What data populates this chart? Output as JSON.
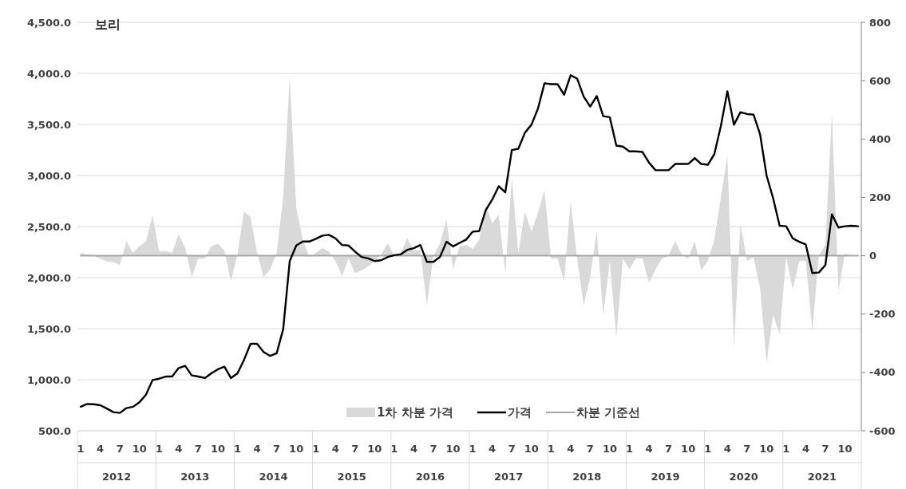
{
  "chart_data": {
    "type": "line",
    "title": "보리",
    "categories": [
      "1",
      null,
      null,
      "4",
      null,
      null,
      "7",
      null,
      null,
      "10",
      null,
      null,
      "1",
      null,
      null,
      "4",
      null,
      null,
      "7",
      null,
      null,
      "10",
      null,
      null,
      "1",
      null,
      null,
      "4",
      null,
      null,
      "7",
      null,
      null,
      "10",
      null,
      null,
      "1",
      null,
      null,
      "4",
      null,
      null,
      "7",
      null,
      null,
      "10",
      null,
      null,
      "1",
      null,
      null,
      "4",
      null,
      null,
      "7",
      null,
      null,
      "10",
      null,
      null,
      "1",
      null,
      null,
      "4",
      null,
      null,
      "7",
      null,
      null,
      "10",
      null,
      null,
      "1",
      null,
      null,
      "4",
      null,
      null,
      "7",
      null,
      null,
      "10",
      null,
      null,
      "1",
      null,
      null,
      "4",
      null,
      null,
      "7",
      null,
      null,
      "10",
      null,
      null,
      "1",
      null,
      null,
      "4",
      null,
      null,
      "7",
      null,
      null,
      "10",
      null,
      null,
      "1",
      null,
      null,
      "4",
      null,
      null,
      "7",
      null,
      null,
      "10",
      null,
      null
    ],
    "annotations": [
      "2012",
      "2013",
      "2014",
      "2015",
      "2016",
      "2017",
      "2018",
      "2019",
      "2020",
      "2021"
    ],
    "series": [
      {
        "name": "1차 차분 가격",
        "type": "area",
        "axis": "y2",
        "color": "#d9d9d9",
        "values": [
          10,
          5,
          0,
          -10,
          -20,
          -22,
          -32,
          50,
          10,
          32,
          50,
          138,
          16,
          16,
          10,
          73,
          27,
          -73,
          -10,
          -10,
          32,
          41,
          18,
          -87,
          5,
          151,
          133,
          10,
          -73,
          -46,
          10,
          200,
          614,
          165,
          55,
          -5,
          10,
          27,
          14,
          -18,
          -69,
          -10,
          -60,
          -50,
          -37,
          -18,
          5,
          41,
          0,
          10,
          60,
          18,
          18,
          -170,
          0,
          41,
          124,
          -46,
          32,
          37,
          23,
          55,
          174,
          110,
          142,
          -60,
          266,
          10,
          151,
          83,
          147,
          225,
          -10,
          -10,
          -87,
          188,
          -10,
          -170,
          -73,
          83,
          -202,
          -18,
          -280,
          -10,
          -46,
          -10,
          -10,
          -92,
          -46,
          -10,
          0,
          50,
          5,
          -10,
          50,
          -50,
          -18,
          55,
          200,
          340,
          -320,
          110,
          -18,
          -5,
          -110,
          -367,
          -202,
          -270,
          -5,
          -115,
          -18,
          -18,
          -257,
          0,
          37,
          490,
          -120,
          7,
          0,
          0
        ]
      },
      {
        "name": "가격",
        "color": "#000000",
        "values": [
          736,
          762,
          760,
          750,
          718,
          683,
          675,
          722,
          735,
          780,
          853,
          997,
          1010,
          1031,
          1031,
          1115,
          1136,
          1042,
          1031,
          1016,
          1063,
          1102,
          1128,
          1016,
          1063,
          1194,
          1351,
          1351,
          1272,
          1233,
          1259,
          1495,
          2162,
          2314,
          2353,
          2353,
          2380,
          2411,
          2419,
          2385,
          2319,
          2314,
          2254,
          2202,
          2189,
          2162,
          2170,
          2202,
          2220,
          2228,
          2272,
          2288,
          2319,
          2154,
          2154,
          2202,
          2351,
          2306,
          2340,
          2372,
          2450,
          2455,
          2660,
          2764,
          2895,
          2835,
          3249,
          3262,
          3419,
          3497,
          3654,
          3903,
          3895,
          3895,
          3791,
          3982,
          3948,
          3772,
          3675,
          3778,
          3581,
          3571,
          3293,
          3283,
          3236,
          3236,
          3230,
          3126,
          3052,
          3052,
          3052,
          3113,
          3113,
          3113,
          3170,
          3113,
          3105,
          3209,
          3484,
          3825,
          3497,
          3620,
          3602,
          3597,
          3406,
          3000,
          2777,
          2508,
          2503,
          2385,
          2351,
          2325,
          2045,
          2050,
          2123,
          2620,
          2490,
          2503,
          2508,
          2503
        ]
      },
      {
        "name": "차분 기준선",
        "axis": "y2",
        "color": "#a6a6a6",
        "values": [
          0,
          0,
          0,
          0,
          0,
          0,
          0,
          0,
          0,
          0,
          0,
          0,
          0,
          0,
          0,
          0,
          0,
          0,
          0,
          0,
          0,
          0,
          0,
          0,
          0,
          0,
          0,
          0,
          0,
          0,
          0,
          0,
          0,
          0,
          0,
          0,
          0,
          0,
          0,
          0,
          0,
          0,
          0,
          0,
          0,
          0,
          0,
          0,
          0,
          0,
          0,
          0,
          0,
          0,
          0,
          0,
          0,
          0,
          0,
          0,
          0,
          0,
          0,
          0,
          0,
          0,
          0,
          0,
          0,
          0,
          0,
          0,
          0,
          0,
          0,
          0,
          0,
          0,
          0,
          0,
          0,
          0,
          0,
          0,
          0,
          0,
          0,
          0,
          0,
          0,
          0,
          0,
          0,
          0,
          0,
          0,
          0,
          0,
          0,
          0,
          0,
          0,
          0,
          0,
          0,
          0,
          0,
          0,
          0,
          0,
          0,
          0,
          0,
          0,
          0,
          0,
          0,
          0,
          0,
          0
        ]
      }
    ],
    "ylim": [
      500,
      4500
    ],
    "yticks": [
      {
        "value": 500,
        "label": "500.0"
      },
      {
        "value": 1000,
        "label": "1,000.0"
      },
      {
        "value": 1500,
        "label": "1,500.0"
      },
      {
        "value": 2000,
        "label": "2,000.0"
      },
      {
        "value": 2500,
        "label": "2,500.0"
      },
      {
        "value": 3000,
        "label": "3,000.0"
      },
      {
        "value": 3500,
        "label": "3,500.0"
      },
      {
        "value": 4000,
        "label": "4,000.0"
      },
      {
        "value": 4500,
        "label": "4,500.0"
      }
    ],
    "y2lim": [
      -600,
      800
    ],
    "y2ticks": [
      -600,
      -400,
      -200,
      0,
      200,
      400,
      600,
      800
    ],
    "grid": "y",
    "legend": "bottom"
  }
}
